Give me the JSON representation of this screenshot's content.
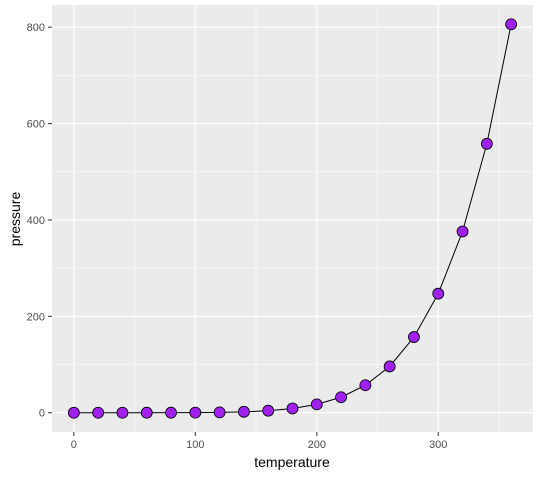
{
  "chart_data": {
    "type": "line",
    "xlabel": "temperature",
    "ylabel": "pressure",
    "xlim": [
      -18,
      378
    ],
    "ylim": [
      -40,
      846
    ],
    "x_ticks": [
      0,
      100,
      200,
      300
    ],
    "x_tick_labels": [
      "0",
      "100",
      "200",
      "300"
    ],
    "y_ticks": [
      0,
      200,
      400,
      600,
      800
    ],
    "y_tick_labels": [
      "0",
      "200",
      "400",
      "600",
      "800"
    ],
    "grid": true,
    "legend": "none",
    "x": [
      0,
      20,
      40,
      60,
      80,
      100,
      120,
      140,
      160,
      180,
      200,
      220,
      240,
      260,
      280,
      300,
      320,
      340,
      360
    ],
    "series": [
      {
        "values": [
          0.0002,
          0.0012,
          0.006,
          0.03,
          0.09,
          0.27,
          0.75,
          1.85,
          4.2,
          8.8,
          17.3,
          32.1,
          57,
          96,
          157,
          247,
          376,
          558,
          806
        ]
      }
    ],
    "colors": {
      "panel_background": "#ebebeb",
      "grid": "#ffffff",
      "line": "#000000",
      "point_fill": "#a020f0",
      "point_stroke": "#000000"
    }
  }
}
